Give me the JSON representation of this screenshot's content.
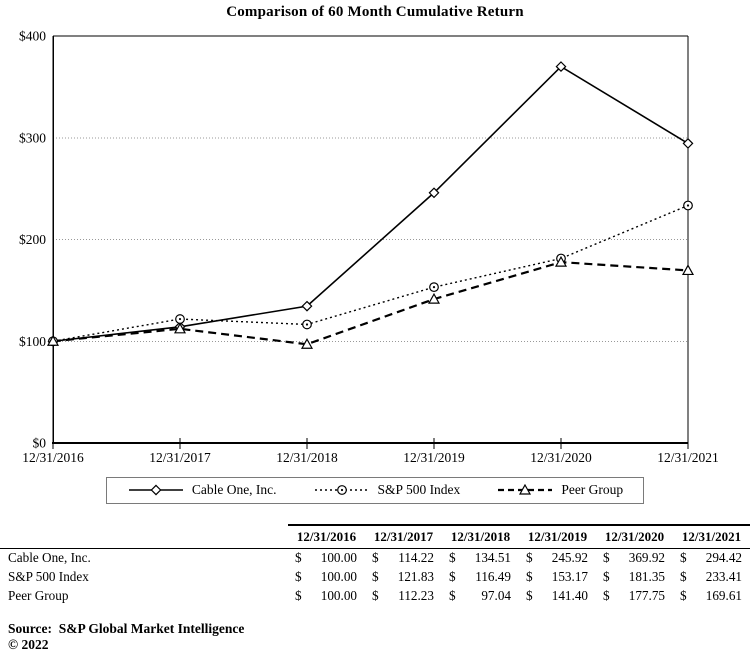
{
  "title": "Comparison of 60 Month Cumulative Return",
  "chart_data": {
    "type": "line",
    "title": "Comparison of 60 Month Cumulative Return",
    "x": [
      "12/31/2016",
      "12/31/2017",
      "12/31/2018",
      "12/31/2019",
      "12/31/2020",
      "12/31/2021"
    ],
    "series": [
      {
        "name": "Cable One, Inc.",
        "values": [
          100.0,
          114.22,
          134.51,
          245.92,
          369.92,
          294.42
        ],
        "line": "solid",
        "marker": "diamond"
      },
      {
        "name": "S&P 500 Index",
        "values": [
          100.0,
          121.83,
          116.49,
          153.17,
          181.35,
          233.41
        ],
        "line": "dotted",
        "marker": "circle"
      },
      {
        "name": "Peer Group",
        "values": [
          100.0,
          112.23,
          97.04,
          141.4,
          177.75,
          169.61
        ],
        "line": "dashed",
        "marker": "triangle"
      }
    ],
    "ylim": [
      0,
      400
    ],
    "yticks": [
      "$0",
      "$100",
      "$200",
      "$300",
      "$400"
    ],
    "grid": "horizontal-dotted",
    "legend_position": "bottom",
    "colors": {
      "line": "#000000",
      "gridline": "#999999",
      "marker_fill": "#ffffff"
    }
  },
  "table": {
    "columns": [
      "12/31/2016",
      "12/31/2017",
      "12/31/2018",
      "12/31/2019",
      "12/31/2020",
      "12/31/2021"
    ],
    "currency_symbol": "$",
    "rows": [
      {
        "label": "Cable One, Inc.",
        "values": [
          "100.00",
          "114.22",
          "134.51",
          "245.92",
          "369.92",
          "294.42"
        ]
      },
      {
        "label": "S&P 500 Index",
        "values": [
          "100.00",
          "121.83",
          "116.49",
          "153.17",
          "181.35",
          "233.41"
        ]
      },
      {
        "label": "Peer Group",
        "values": [
          "100.00",
          "112.23",
          "97.04",
          "141.40",
          "177.75",
          "169.61"
        ]
      }
    ]
  },
  "footer": {
    "source": "Source:  S&P Global Market Intelligence",
    "copyright": "© 2022"
  }
}
